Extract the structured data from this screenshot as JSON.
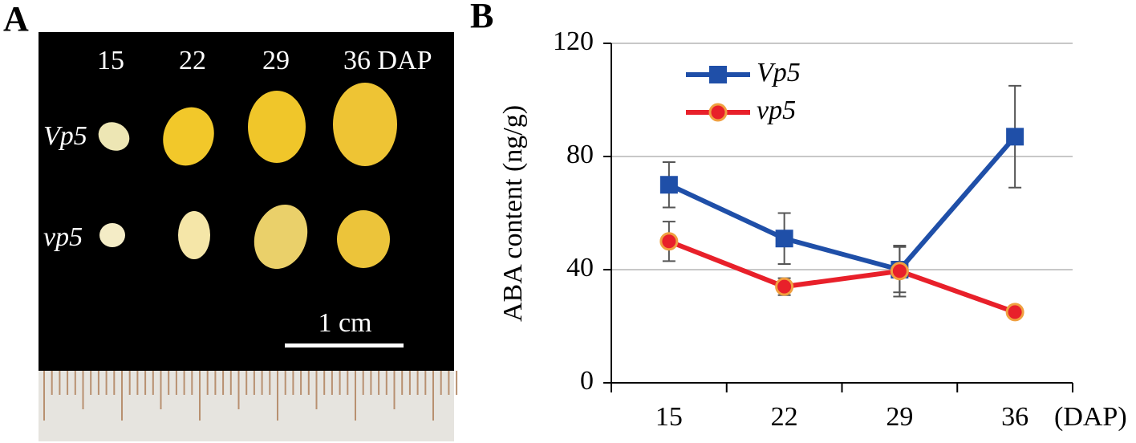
{
  "photo": {
    "panel_label": "A",
    "column_labels": [
      "15",
      "22",
      "29",
      "36 DAP"
    ],
    "row_labels": [
      "Vp5",
      "vp5"
    ],
    "scale_bar": "1 cm"
  },
  "chart_data": {
    "type": "line",
    "panel_label": "B",
    "y_label": "ABA content (ng/g)",
    "x_label": "(DAP)",
    "categories": [
      "15",
      "22",
      "29",
      "36"
    ],
    "ylim": [
      0,
      120
    ],
    "yticks": [
      0,
      40,
      80,
      120
    ],
    "grid": true,
    "legend": "upper left",
    "series": [
      {
        "name": "Vp5",
        "color": "#1f4fa8",
        "marker": "square",
        "values": [
          70,
          51,
          40,
          87
        ],
        "errors": [
          8,
          9,
          8,
          18
        ]
      },
      {
        "name": "vp5",
        "color": "#e8202a",
        "marker": "circle",
        "values": [
          50,
          34,
          39.5,
          25
        ],
        "errors": [
          7,
          3,
          9,
          1
        ]
      }
    ]
  }
}
